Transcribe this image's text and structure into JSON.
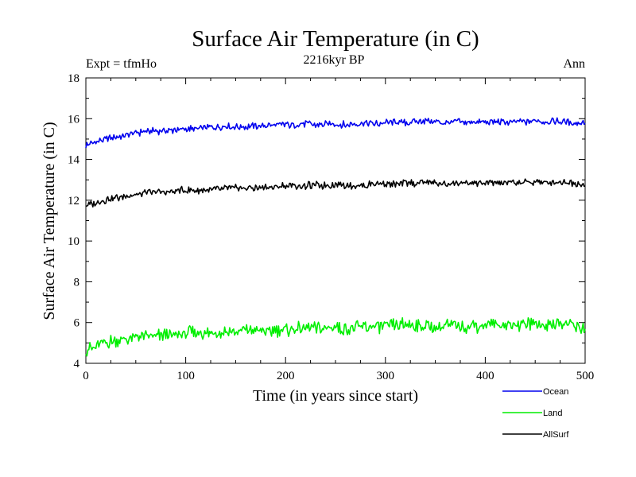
{
  "chart_data": {
    "type": "line",
    "title": "Surface Air Temperature (in C)",
    "subtitle": "2216kyr BP",
    "left_label": "Expt = tfmHo",
    "right_label": "Ann",
    "xlabel": "Time (in years since start)",
    "ylabel": "Surface Air Temperature (in C)",
    "xlim": [
      0,
      500
    ],
    "ylim": [
      4,
      18
    ],
    "xticks": [
      0,
      100,
      200,
      300,
      400,
      500
    ],
    "yticks": [
      4,
      6,
      8,
      10,
      12,
      14,
      16,
      18
    ],
    "legend_position": "bottom-right",
    "series": [
      {
        "name": "Ocean",
        "color": "#0000ee",
        "x": [
          0,
          10,
          20,
          30,
          40,
          50,
          60,
          70,
          80,
          90,
          100,
          110,
          120,
          130,
          140,
          150,
          160,
          170,
          180,
          190,
          200,
          210,
          220,
          230,
          240,
          250,
          260,
          270,
          280,
          290,
          300,
          310,
          320,
          330,
          340,
          350,
          360,
          370,
          380,
          390,
          400,
          410,
          420,
          430,
          440,
          450,
          460,
          470,
          480,
          490,
          500
        ],
        "values": [
          14.7,
          14.9,
          15.0,
          15.1,
          15.2,
          15.3,
          15.35,
          15.4,
          15.4,
          15.45,
          15.5,
          15.5,
          15.55,
          15.55,
          15.6,
          15.6,
          15.6,
          15.65,
          15.65,
          15.7,
          15.7,
          15.7,
          15.75,
          15.7,
          15.75,
          15.75,
          15.7,
          15.75,
          15.8,
          15.75,
          15.8,
          15.8,
          15.8,
          15.85,
          15.9,
          15.85,
          15.8,
          15.85,
          15.8,
          15.85,
          15.8,
          15.85,
          15.8,
          15.85,
          15.85,
          15.9,
          15.85,
          15.9,
          15.85,
          15.8,
          15.8
        ]
      },
      {
        "name": "Land",
        "color": "#00ee00",
        "x": [
          0,
          10,
          20,
          30,
          40,
          50,
          60,
          70,
          80,
          90,
          100,
          110,
          120,
          130,
          140,
          150,
          160,
          170,
          180,
          190,
          200,
          210,
          220,
          230,
          240,
          250,
          260,
          270,
          280,
          290,
          300,
          310,
          320,
          330,
          340,
          350,
          360,
          370,
          380,
          390,
          400,
          410,
          420,
          430,
          440,
          450,
          460,
          470,
          480,
          490,
          500
        ],
        "values": [
          4.7,
          4.8,
          5.0,
          5.1,
          5.2,
          5.3,
          5.3,
          5.35,
          5.4,
          5.4,
          5.45,
          5.5,
          5.5,
          5.5,
          5.55,
          5.55,
          5.6,
          5.6,
          5.55,
          5.6,
          5.65,
          5.7,
          5.7,
          5.7,
          5.75,
          5.75,
          5.7,
          5.75,
          5.8,
          5.8,
          5.8,
          5.85,
          5.9,
          5.9,
          5.85,
          5.8,
          5.85,
          5.85,
          5.8,
          5.85,
          5.85,
          5.9,
          5.85,
          5.9,
          5.95,
          5.95,
          5.9,
          5.95,
          5.95,
          5.9,
          5.7
        ]
      },
      {
        "name": "AllSurf",
        "color": "#000000",
        "x": [
          0,
          10,
          20,
          30,
          40,
          50,
          60,
          70,
          80,
          90,
          100,
          110,
          120,
          130,
          140,
          150,
          160,
          170,
          180,
          190,
          200,
          210,
          220,
          230,
          240,
          250,
          260,
          270,
          280,
          290,
          300,
          310,
          320,
          330,
          340,
          350,
          360,
          370,
          380,
          390,
          400,
          410,
          420,
          430,
          440,
          450,
          460,
          470,
          480,
          490,
          500
        ],
        "values": [
          11.7,
          11.85,
          12.0,
          12.1,
          12.2,
          12.3,
          12.35,
          12.4,
          12.4,
          12.45,
          12.5,
          12.5,
          12.5,
          12.55,
          12.55,
          12.6,
          12.6,
          12.6,
          12.65,
          12.65,
          12.7,
          12.7,
          12.7,
          12.75,
          12.7,
          12.75,
          12.75,
          12.7,
          12.75,
          12.8,
          12.8,
          12.8,
          12.85,
          12.85,
          12.9,
          12.85,
          12.8,
          12.85,
          12.8,
          12.85,
          12.8,
          12.85,
          12.85,
          12.85,
          12.9,
          12.9,
          12.85,
          12.9,
          12.9,
          12.85,
          12.75
        ]
      }
    ]
  }
}
